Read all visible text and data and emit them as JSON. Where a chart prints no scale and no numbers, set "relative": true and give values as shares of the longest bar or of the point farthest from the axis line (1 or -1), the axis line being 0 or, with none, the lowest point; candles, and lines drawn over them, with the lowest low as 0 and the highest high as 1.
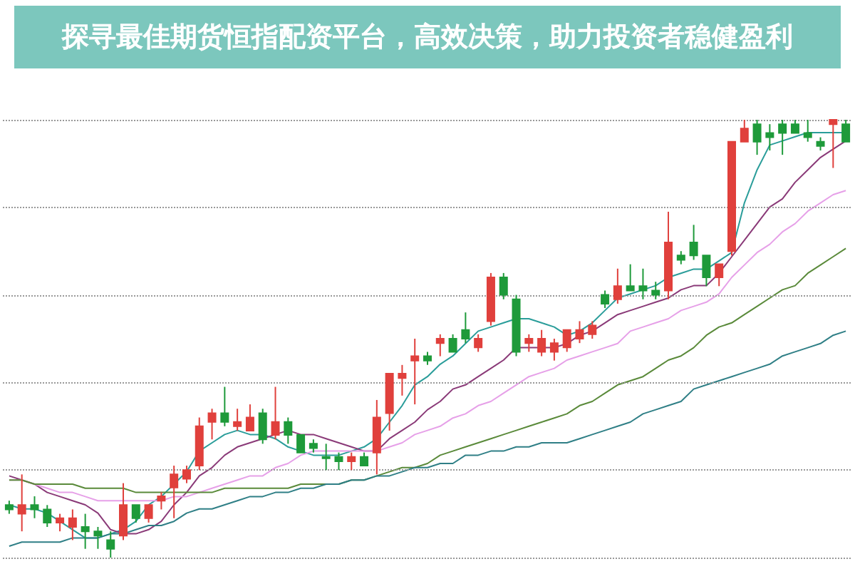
{
  "chart_data": [
    {
      "type": "candlestick",
      "title": "探寻最佳期货恒指配资平台，高效决策，助力投资者稳健盈利",
      "relative": true,
      "grid": "y",
      "categories": [
        null,
        null,
        null,
        null,
        null,
        null,
        null,
        null,
        null,
        null,
        null,
        null,
        null,
        null,
        null,
        null,
        null,
        null,
        null,
        null,
        null,
        null,
        null,
        null,
        null,
        null,
        null,
        null,
        null,
        null,
        null,
        null,
        null,
        null,
        null,
        null,
        null,
        null,
        null,
        null,
        null,
        null,
        null,
        null,
        null,
        null,
        null,
        null,
        null,
        null,
        null,
        null,
        null,
        null,
        null,
        null,
        null,
        null,
        null,
        null,
        null,
        null,
        null,
        null,
        null,
        null,
        null
      ],
      "ohlc": [
        [
          0.12,
          0.13,
          0.1,
          0.11
        ],
        [
          0.1,
          0.19,
          0.06,
          0.12
        ],
        [
          0.12,
          0.14,
          0.09,
          0.11
        ],
        [
          0.11,
          0.12,
          0.07,
          0.08
        ],
        [
          0.08,
          0.1,
          0.06,
          0.09
        ],
        [
          0.07,
          0.11,
          0.04,
          0.09
        ],
        [
          0.07,
          0.1,
          0.02,
          0.06
        ],
        [
          0.06,
          0.07,
          0.02,
          0.05
        ],
        [
          0.04,
          0.06,
          0,
          0.02
        ],
        [
          0.05,
          0.17,
          0.04,
          0.12
        ],
        [
          0.12,
          0.12,
          0.08,
          0.09
        ],
        [
          0.09,
          0.12,
          0.08,
          0.12
        ],
        [
          0.13,
          0.15,
          0.11,
          0.14
        ],
        [
          0.16,
          0.21,
          0.09,
          0.19
        ],
        [
          0.18,
          0.21,
          0.17,
          0.2
        ],
        [
          0.21,
          0.32,
          0.2,
          0.3
        ],
        [
          0.31,
          0.34,
          0.27,
          0.33
        ],
        [
          0.33,
          0.39,
          0.3,
          0.31
        ],
        [
          0.3,
          0.34,
          0.29,
          0.31
        ],
        [
          0.29,
          0.35,
          0.29,
          0.32
        ],
        [
          0.33,
          0.34,
          0.26,
          0.27
        ],
        [
          0.28,
          0.39,
          0.27,
          0.31
        ],
        [
          0.31,
          0.32,
          0.26,
          0.28
        ],
        [
          0.28,
          0.28,
          0.24,
          0.24
        ],
        [
          0.26,
          0.27,
          0.24,
          0.25
        ],
        [
          0.23,
          0.26,
          0.2,
          0.23
        ],
        [
          0.23,
          0.24,
          0.2,
          0.22
        ],
        [
          0.22,
          0.24,
          0.2,
          0.23
        ],
        [
          0.23,
          0.24,
          0.21,
          0.21
        ],
        [
          0.24,
          0.36,
          0.19,
          0.32
        ],
        [
          0.33,
          0.42,
          0.29,
          0.42
        ],
        [
          0.41,
          0.44,
          0.37,
          0.42
        ],
        [
          0.45,
          0.5,
          0.35,
          0.46
        ],
        [
          0.46,
          0.47,
          0.44,
          0.45
        ],
        [
          0.49,
          0.51,
          0.46,
          0.5
        ],
        [
          0.5,
          0.51,
          0.47,
          0.47
        ],
        [
          0.52,
          0.56,
          0.49,
          0.5
        ],
        [
          0.48,
          0.51,
          0.47,
          0.5
        ],
        [
          0.54,
          0.65,
          0.53,
          0.64
        ],
        [
          0.64,
          0.65,
          0.59,
          0.6
        ],
        [
          0.59,
          0.6,
          0.46,
          0.47
        ],
        [
          0.49,
          0.51,
          0.47,
          0.5
        ],
        [
          0.47,
          0.52,
          0.46,
          0.5
        ],
        [
          0.47,
          0.5,
          0.45,
          0.49
        ],
        [
          0.48,
          0.52,
          0.47,
          0.52
        ],
        [
          0.5,
          0.54,
          0.49,
          0.52
        ],
        [
          0.51,
          0.54,
          0.5,
          0.53
        ],
        [
          0.6,
          0.61,
          0.57,
          0.58
        ],
        [
          0.59,
          0.66,
          0.58,
          0.62
        ],
        [
          0.62,
          0.67,
          0.61,
          0.61
        ],
        [
          0.62,
          0.66,
          0.59,
          0.61
        ],
        [
          0.61,
          0.63,
          0.59,
          0.6
        ],
        [
          0.61,
          0.79,
          0.59,
          0.72
        ],
        [
          0.69,
          0.7,
          0.67,
          0.68
        ],
        [
          0.72,
          0.76,
          0.68,
          0.69
        ],
        [
          0.69,
          0.69,
          0.62,
          0.64
        ],
        [
          0.64,
          0.67,
          0.62,
          0.67
        ],
        [
          0.7,
          0.95,
          0.69,
          0.95
        ],
        [
          0.95,
          1,
          0.95,
          0.98
        ],
        [
          0.99,
          1,
          0.92,
          0.95
        ],
        [
          0.97,
          0.99,
          0.93,
          0.96
        ],
        [
          0.99,
          1,
          0.92,
          0.97
        ],
        [
          0.99,
          1,
          0.97,
          0.97
        ],
        [
          0.97,
          1,
          0.95,
          0.96
        ],
        [
          0.95,
          0.96,
          0.93,
          0.94
        ],
        [
          0.99,
          1,
          0.89,
          1
        ],
        [
          0.99,
          1,
          0.95,
          0.95
        ]
      ],
      "colors": [
        "#1e9a3a",
        "#e0403c",
        "#1e9a3a",
        "#1e9a3a",
        "#e0403c",
        "#e0403c",
        "#1e9a3a",
        "#1e9a3a",
        "#1e9a3a",
        "#e0403c",
        "#1e9a3a",
        "#e0403c",
        "#e0403c",
        "#e0403c",
        "#e0403c",
        "#e0403c",
        "#e0403c",
        "#1e9a3a",
        "#e0403c",
        "#e0403c",
        "#1e9a3a",
        "#e0403c",
        "#1e9a3a",
        "#1e9a3a",
        "#1e9a3a",
        "#1e9a3a",
        "#1e9a3a",
        "#e0403c",
        "#1e9a3a",
        "#e0403c",
        "#e0403c",
        "#e0403c",
        "#e0403c",
        "#1e9a3a",
        "#e0403c",
        "#1e9a3a",
        "#1e9a3a",
        "#e0403c",
        "#e0403c",
        "#1e9a3a",
        "#1e9a3a",
        "#e0403c",
        "#e0403c",
        "#e0403c",
        "#e0403c",
        "#e0403c",
        "#e0403c",
        "#1e9a3a",
        "#e0403c",
        "#1e9a3a",
        "#1e9a3a",
        "#1e9a3a",
        "#e0403c",
        "#1e9a3a",
        "#1e9a3a",
        "#1e9a3a",
        "#e0403c",
        "#e0403c",
        "#e0403c",
        "#1e9a3a",
        "#1e9a3a",
        "#1e9a3a",
        "#1e9a3a",
        "#1e9a3a",
        "#1e9a3a",
        "#e0403c",
        "#1e9a3a"
      ]
    },
    {
      "type": "line",
      "relative": true,
      "categories": [
        null,
        null,
        null,
        null,
        null,
        null,
        null,
        null,
        null,
        null,
        null,
        null,
        null,
        null,
        null,
        null,
        null,
        null,
        null,
        null,
        null,
        null,
        null,
        null,
        null,
        null,
        null,
        null,
        null,
        null,
        null,
        null,
        null,
        null,
        null,
        null,
        null,
        null,
        null,
        null,
        null,
        null,
        null,
        null,
        null,
        null,
        null,
        null,
        null,
        null,
        null,
        null,
        null,
        null,
        null,
        null,
        null,
        null,
        null,
        null,
        null,
        null,
        null,
        null,
        null,
        null,
        null
      ],
      "series": [
        {
          "color": "#2a9d9a",
          "values": [
            0.1,
            0.09,
            0.09,
            0.08,
            0.06,
            0.04,
            0.02,
            0.02,
            0.03,
            0.04,
            0.06,
            0.1,
            0.12,
            0.15,
            0.18,
            0.23,
            0.25,
            0.27,
            0.28,
            0.27,
            0.27,
            0.26,
            0.24,
            0.23,
            0.22,
            0.22,
            0.22,
            0.23,
            0.24,
            0.26,
            0.3,
            0.34,
            0.39,
            0.41,
            0.44,
            0.46,
            0.49,
            0.52,
            0.53,
            0.54,
            0.55,
            0.55,
            0.54,
            0.53,
            0.51,
            0.52,
            0.54,
            0.57,
            0.6,
            0.61,
            0.62,
            0.63,
            0.65,
            0.66,
            0.67,
            0.67,
            0.69,
            0.71,
            0.83,
            0.91,
            0.97,
            0.98,
            0.99,
            1,
            1,
            1,
            1
          ]
        },
        {
          "color": "#8a3a78",
          "values": [
            0.17,
            0.16,
            0.15,
            0.13,
            0.12,
            0.11,
            0.1,
            0.08,
            0.04,
            0.03,
            0.03,
            0.04,
            0.06,
            0.1,
            0.13,
            0.17,
            0.19,
            0.22,
            0.24,
            0.25,
            0.26,
            0.27,
            0.28,
            0.27,
            0.27,
            0.26,
            0.25,
            0.24,
            0.23,
            0.23,
            0.26,
            0.28,
            0.3,
            0.33,
            0.35,
            0.38,
            0.39,
            0.41,
            0.43,
            0.45,
            0.48,
            0.48,
            0.48,
            0.48,
            0.49,
            0.51,
            0.52,
            0.54,
            0.56,
            0.57,
            0.58,
            0.59,
            0.6,
            0.62,
            0.63,
            0.63,
            0.66,
            0.7,
            0.74,
            0.78,
            0.82,
            0.84,
            0.88,
            0.91,
            0.94,
            0.96,
            0.98
          ]
        },
        {
          "color": "#e6a0e8",
          "values": [
            0.16,
            0.16,
            0.15,
            0.14,
            0.13,
            0.13,
            0.12,
            0.11,
            0.11,
            0.11,
            0.11,
            0.11,
            0.11,
            0.12,
            0.12,
            0.13,
            0.14,
            0.15,
            0.16,
            0.17,
            0.17,
            0.19,
            0.2,
            0.22,
            0.23,
            0.23,
            0.23,
            0.23,
            0.23,
            0.23,
            0.24,
            0.25,
            0.27,
            0.28,
            0.29,
            0.31,
            0.32,
            0.34,
            0.35,
            0.37,
            0.39,
            0.41,
            0.42,
            0.43,
            0.45,
            0.46,
            0.47,
            0.48,
            0.49,
            0.52,
            0.53,
            0.54,
            0.55,
            0.57,
            0.58,
            0.59,
            0.61,
            0.65,
            0.68,
            0.71,
            0.73,
            0.76,
            0.78,
            0.81,
            0.83,
            0.85,
            0.86
          ]
        },
        {
          "color": "#5a8a3a",
          "values": [
            0.16,
            0.16,
            0.15,
            0.15,
            0.15,
            0.15,
            0.14,
            0.14,
            0.14,
            0.14,
            0.13,
            0.13,
            0.13,
            0.13,
            0.13,
            0.13,
            0.13,
            0.14,
            0.14,
            0.14,
            0.14,
            0.14,
            0.14,
            0.15,
            0.15,
            0.15,
            0.15,
            0.16,
            0.16,
            0.17,
            0.18,
            0.19,
            0.19,
            0.2,
            0.22,
            0.23,
            0.24,
            0.25,
            0.26,
            0.27,
            0.28,
            0.29,
            0.3,
            0.31,
            0.32,
            0.34,
            0.35,
            0.37,
            0.39,
            0.4,
            0.41,
            0.43,
            0.45,
            0.46,
            0.48,
            0.51,
            0.53,
            0.54,
            0.56,
            0.58,
            0.6,
            0.62,
            0.63,
            0.66,
            0.68,
            0.7,
            0.72
          ]
        },
        {
          "color": "#2f7f86",
          "values": [
            0,
            0.01,
            0.01,
            0.01,
            0.01,
            0.02,
            0.02,
            0.02,
            0.03,
            0.03,
            0.04,
            0.05,
            0.05,
            0.06,
            0.08,
            0.09,
            0.09,
            0.1,
            0.11,
            0.12,
            0.12,
            0.13,
            0.13,
            0.14,
            0.14,
            0.15,
            0.15,
            0.16,
            0.16,
            0.17,
            0.17,
            0.18,
            0.19,
            0.19,
            0.2,
            0.2,
            0.22,
            0.22,
            0.23,
            0.23,
            0.24,
            0.24,
            0.25,
            0.25,
            0.25,
            0.26,
            0.27,
            0.28,
            0.29,
            0.3,
            0.32,
            0.33,
            0.34,
            0.35,
            0.38,
            0.39,
            0.4,
            0.41,
            0.42,
            0.43,
            0.44,
            0.46,
            0.47,
            0.48,
            0.49,
            0.51,
            0.52
          ]
        }
      ]
    }
  ]
}
